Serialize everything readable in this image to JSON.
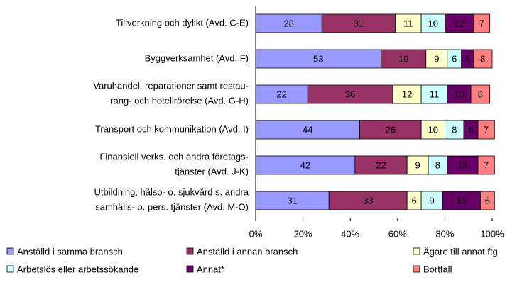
{
  "chart_data": {
    "type": "stacked_bar_horizontal",
    "categories": [
      [
        "Tillverkning och dylikt (Avd. C-E)"
      ],
      [
        "Byggverksamhet (Avd. F)"
      ],
      [
        "Varuhandel, reparationer samt restau-",
        "rang- och hotellrörelse (Avd. G-H)"
      ],
      [
        "Transport och kommunikation (Avd. I)"
      ],
      [
        "Finansiell verks. och andra företags-",
        "tjänster (Avd. J-K)"
      ],
      [
        "Utbildning, hälso- o. sjukvård s. andra",
        "samhälls- o. pers. tjänster (Avd. M-O)"
      ]
    ],
    "series": [
      {
        "name": "Anställd i samma bransch",
        "color": "#9999ff",
        "values": [
          28,
          53,
          22,
          44,
          42,
          31
        ]
      },
      {
        "name": "Anställd i annan bransch",
        "color": "#993366",
        "values": [
          31,
          19,
          36,
          26,
          22,
          33
        ]
      },
      {
        "name": "Ägare till annat ftg.",
        "color": "#ffffcc",
        "values": [
          11,
          9,
          12,
          10,
          9,
          6
        ]
      },
      {
        "name": "Arbetslös eller arbetssökande",
        "color": "#ccffff",
        "values": [
          10,
          6,
          11,
          8,
          8,
          9
        ]
      },
      {
        "name": "Annat*",
        "color": "#660066",
        "values": [
          12,
          5,
          10,
          6,
          13,
          16
        ]
      },
      {
        "name": "Bortfall",
        "color": "#ff8080",
        "values": [
          7,
          8,
          8,
          7,
          7,
          6
        ]
      }
    ],
    "xlim": [
      0,
      100
    ],
    "xticks": [
      {
        "value": 0,
        "label": "0%"
      },
      {
        "value": 20,
        "label": "20%"
      },
      {
        "value": 40,
        "label": "40%"
      },
      {
        "value": 60,
        "label": "60%"
      },
      {
        "value": 80,
        "label": "80%"
      },
      {
        "value": 100,
        "label": "100%"
      }
    ],
    "legend": "bottom"
  }
}
